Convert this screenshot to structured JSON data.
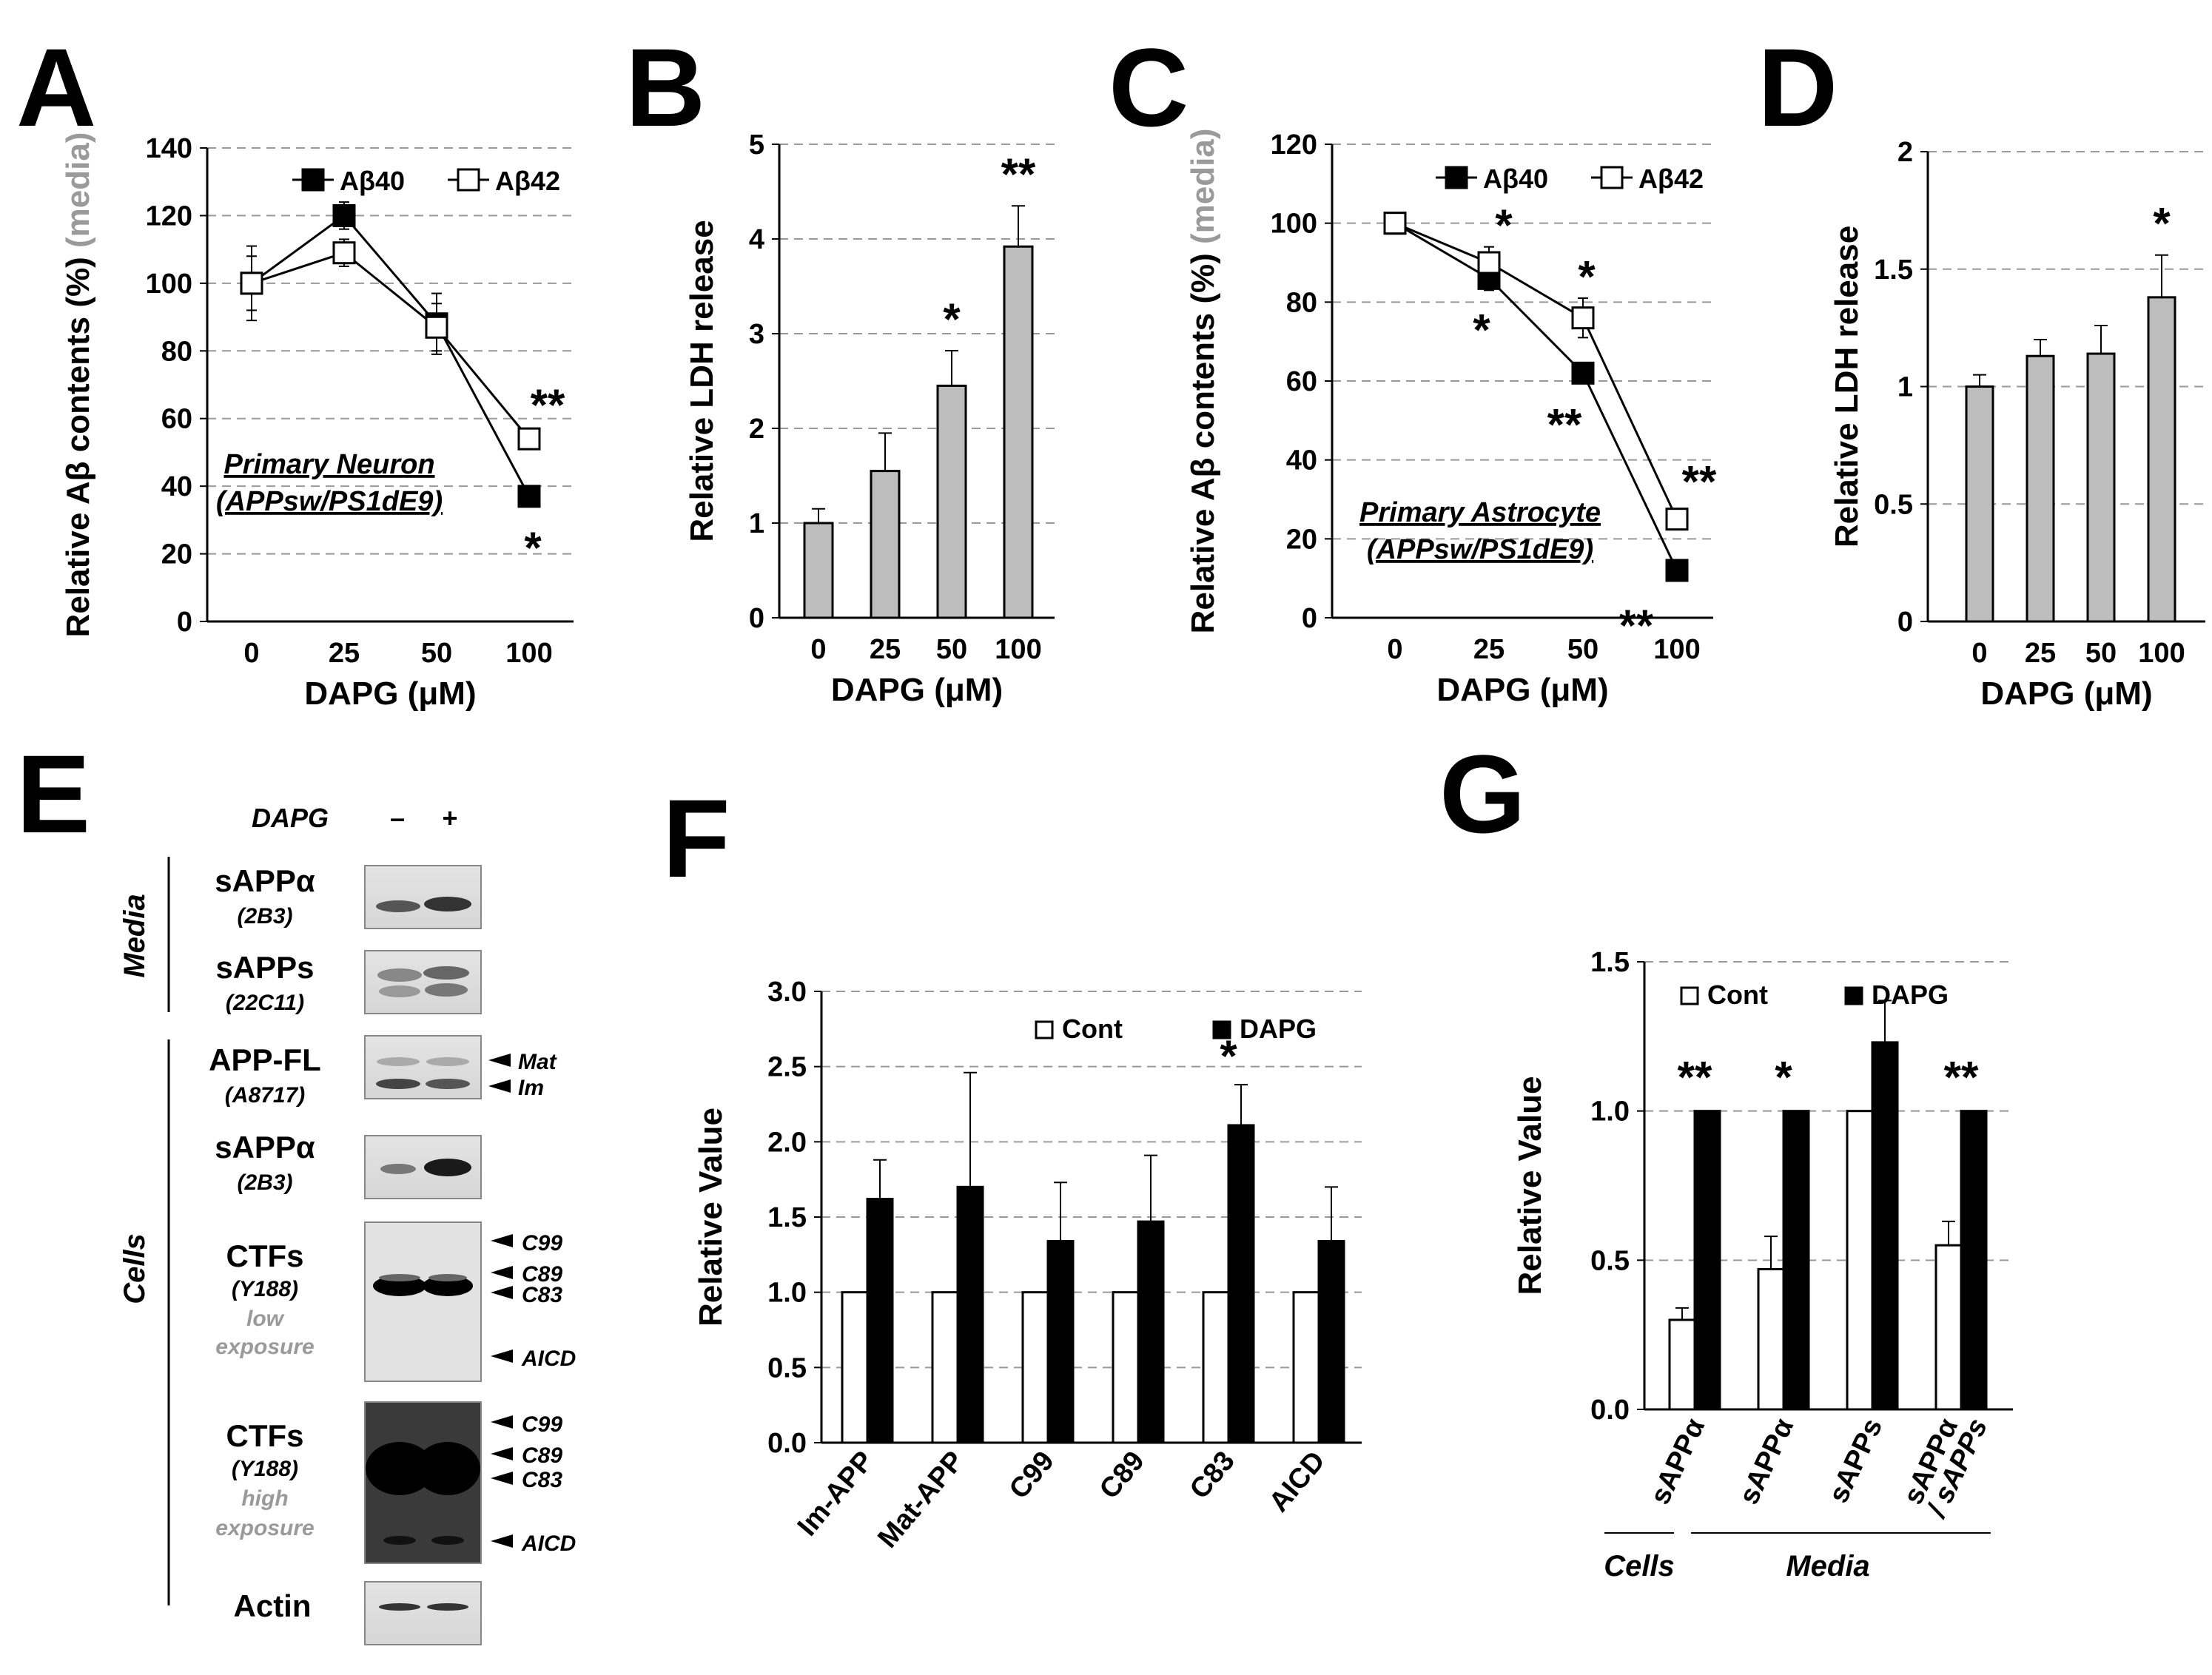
{
  "panels": {
    "A": "A",
    "B": "B",
    "C": "C",
    "D": "D",
    "E": "E",
    "F": "F",
    "G": "G"
  },
  "chart_data": [
    {
      "id": "A",
      "type": "line",
      "ylabel": "Relative Aβ contents (%)",
      "ylabel_sub": "(media)",
      "xlabel": "DAPG (μM)",
      "categories": [
        "0",
        "25",
        "50",
        "100"
      ],
      "ylim": [
        0,
        140
      ],
      "yticks": [
        0,
        20,
        40,
        60,
        80,
        100,
        120,
        140
      ],
      "series": [
        {
          "name": "Aβ40",
          "marker": "filled",
          "values": [
            100,
            120,
            88,
            37
          ],
          "errors": [
            11,
            4,
            9,
            0
          ]
        },
        {
          "name": "Aβ42",
          "marker": "open",
          "values": [
            100,
            109,
            87,
            54
          ],
          "errors": [
            8,
            4,
            7,
            3
          ]
        }
      ],
      "annotations": [
        {
          "text": "**",
          "category": "100",
          "series": "Aβ42",
          "position": "above"
        },
        {
          "text": "*",
          "category": "100",
          "series": "Aβ40",
          "position": "below"
        }
      ],
      "inset_label": [
        "Primary Neuron",
        "(APPsw/PS1dE9)"
      ]
    },
    {
      "id": "B",
      "type": "bar",
      "ylabel": "Relative LDH release",
      "xlabel": "DAPG (μM)",
      "categories": [
        "0",
        "25",
        "50",
        "100"
      ],
      "ylim": [
        0,
        5
      ],
      "yticks": [
        0,
        1,
        2,
        3,
        4,
        5
      ],
      "values": [
        1.0,
        1.55,
        2.45,
        3.92
      ],
      "errors": [
        0.15,
        0.4,
        0.37,
        0.43
      ],
      "significance": [
        "",
        "",
        "*",
        "**"
      ]
    },
    {
      "id": "C",
      "type": "line",
      "ylabel": "Relative Aβ contents (%)",
      "ylabel_sub": "(media)",
      "xlabel": "DAPG (μM)",
      "categories": [
        "0",
        "25",
        "50",
        "100"
      ],
      "ylim": [
        0,
        120
      ],
      "yticks": [
        0,
        20,
        40,
        60,
        80,
        100,
        120
      ],
      "series": [
        {
          "name": "Aβ40",
          "marker": "filled",
          "values": [
            100,
            86,
            62,
            12
          ],
          "errors": [
            0,
            3,
            2,
            0
          ]
        },
        {
          "name": "Aβ42",
          "marker": "open",
          "values": [
            100,
            90,
            76,
            25
          ],
          "errors": [
            0,
            4,
            5,
            2
          ]
        }
      ],
      "annotations": [
        {
          "text": "*",
          "category": "25",
          "series": "Aβ42",
          "position": "above"
        },
        {
          "text": "*",
          "category": "25",
          "series": "Aβ40",
          "position": "below"
        },
        {
          "text": "*",
          "category": "50",
          "series": "Aβ42",
          "position": "above"
        },
        {
          "text": "**",
          "category": "50",
          "series": "Aβ40",
          "position": "below"
        },
        {
          "text": "**",
          "category": "100",
          "series": "Aβ42",
          "position": "above"
        },
        {
          "text": "**",
          "category": "100",
          "series": "Aβ40",
          "position": "below"
        }
      ],
      "inset_label": [
        "Primary Astrocyte",
        "(APPsw/PS1dE9)"
      ]
    },
    {
      "id": "D",
      "type": "bar",
      "ylabel": "Relative LDH release",
      "xlabel": "DAPG (μM)",
      "categories": [
        "0",
        "25",
        "50",
        "100"
      ],
      "ylim": [
        0,
        2
      ],
      "yticks": [
        "0",
        "0.5",
        "1",
        "1.5",
        "2"
      ],
      "values": [
        1.0,
        1.13,
        1.14,
        1.38
      ],
      "errors": [
        0.05,
        0.07,
        0.12,
        0.18
      ],
      "significance": [
        "",
        "",
        "",
        "*"
      ]
    },
    {
      "id": "F",
      "type": "bar",
      "ylabel": "Relative Value",
      "categories": [
        "Im-APP",
        "Mat-APP",
        "C99",
        "C89",
        "C83",
        "AICD"
      ],
      "ylim": [
        0,
        3.0
      ],
      "yticks": [
        "0.0",
        "0.5",
        "1.0",
        "1.5",
        "2.0",
        "2.5",
        "3.0"
      ],
      "legend": [
        "Cont",
        "DAPG"
      ],
      "series": [
        {
          "name": "Cont",
          "values": [
            1.0,
            1.0,
            1.0,
            1.0,
            1.0,
            1.0
          ],
          "errors": [
            0,
            0,
            0,
            0,
            0,
            0
          ]
        },
        {
          "name": "DAPG",
          "values": [
            1.62,
            1.7,
            1.34,
            1.47,
            2.11,
            1.34
          ],
          "errors": [
            0.26,
            0.76,
            0.39,
            0.44,
            0.27,
            0.36
          ]
        }
      ],
      "significance": [
        "",
        "",
        "",
        "",
        "*",
        ""
      ]
    },
    {
      "id": "G",
      "type": "bar",
      "ylabel": "Relative Value",
      "categories": [
        "sAPPα",
        "sAPPα",
        "sAPPs",
        "sAPPα / sAPPs"
      ],
      "ylim": [
        0,
        1.5
      ],
      "yticks": [
        "0.0",
        "0.5",
        "1.0",
        "1.5"
      ],
      "legend": [
        "Cont",
        "DAPG"
      ],
      "series": [
        {
          "name": "Cont",
          "values": [
            0.3,
            0.47,
            1.0,
            0.55
          ],
          "errors": [
            0.04,
            0.11,
            0,
            0.08
          ]
        },
        {
          "name": "DAPG",
          "values": [
            1.0,
            1.0,
            1.23,
            1.0
          ],
          "errors": [
            0,
            0,
            0.14,
            0
          ]
        }
      ],
      "significance": [
        "**",
        "*",
        "",
        "**"
      ],
      "groups": [
        {
          "label": "Cells",
          "categories": [
            "sAPPα"
          ]
        },
        {
          "label": "Media",
          "categories": [
            "sAPPα",
            "sAPPs",
            "sAPPα / sAPPs"
          ]
        }
      ]
    }
  ],
  "blot_E": {
    "condition": "DAPG",
    "lanes": [
      "–",
      "+"
    ],
    "side_labels": [
      "Media",
      "Cells"
    ],
    "rows": [
      {
        "label": "sAPPα",
        "sub": "(2B3)"
      },
      {
        "label": "sAPPs",
        "sub": "(22C11)"
      },
      {
        "label": "APP-FL",
        "sub": "(A8717)",
        "arrows": [
          "Mat",
          "Im"
        ]
      },
      {
        "label": "sAPPα",
        "sub": "(2B3)"
      },
      {
        "label": "CTFs",
        "sub": "(Y188)",
        "note": [
          "low",
          "exposure"
        ],
        "arrows": [
          "C99",
          "C89",
          "C83",
          "AICD"
        ]
      },
      {
        "label": "CTFs",
        "sub": "(Y188)",
        "note": [
          "high",
          "exposure"
        ],
        "arrows": [
          "C99",
          "C89",
          "C83",
          "AICD"
        ]
      },
      {
        "label": "Actin"
      }
    ]
  },
  "colors": {
    "bar_grey": "#bdbdbd",
    "bar_black": "#000000",
    "grid": "#999999",
    "note_grey": "#9a9a9a"
  }
}
